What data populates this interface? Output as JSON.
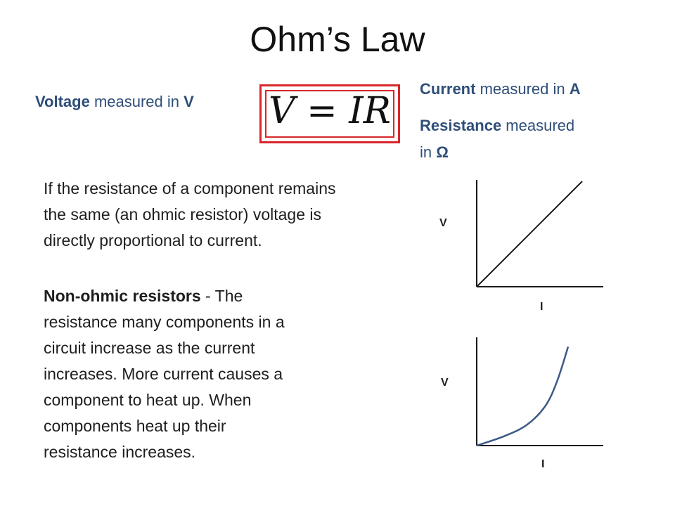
{
  "title": "Ohm’s Law",
  "voltage": {
    "name": "Voltage",
    "middle": " measured in ",
    "unit": "V"
  },
  "current": {
    "name": "Current",
    "middle": " measured in ",
    "unit": "A"
  },
  "resistance": {
    "name": "Resistance",
    "middle": " measured",
    "line2": "in ",
    "unit": "Ω"
  },
  "equation": {
    "lhs": "V",
    "eq": " = ",
    "rhs": "IR"
  },
  "paragraph1": {
    "lines": [
      "If the resistance of a component remains",
      "the same (an ohmic resistor) voltage is",
      "directly proportional to current."
    ]
  },
  "paragraph2": {
    "bold": "Non-ohmic resistors",
    "first_rest": " - The",
    "lines": [
      "resistance many components in a",
      "circuit increase as the current",
      "increases. More current causes a",
      "component to heat up. When",
      "components heat up their",
      "resistance increases."
    ]
  },
  "colors": {
    "accent_text": "#2f4e7a",
    "equation_border": "#d9262a",
    "curve": "#3c5a85"
  },
  "chart_data": [
    {
      "type": "line",
      "ylabel": "V",
      "xlabel": "I",
      "series": [
        {
          "x": [
            0,
            1
          ],
          "y": [
            0,
            1
          ]
        }
      ],
      "ylim": [
        0,
        1.0
      ],
      "xlim": [
        0,
        1.0
      ],
      "grid": false
    },
    {
      "type": "line",
      "ylabel": "V",
      "xlabel": "I",
      "series": [
        {
          "x": [
            0,
            0.3,
            0.55,
            0.75,
            0.88,
            1.0
          ],
          "y": [
            0,
            0.09,
            0.2,
            0.38,
            0.62,
            0.95
          ]
        }
      ],
      "ylim": [
        0,
        1.0
      ],
      "xlim": [
        0,
        1.0
      ],
      "grid": false
    }
  ]
}
